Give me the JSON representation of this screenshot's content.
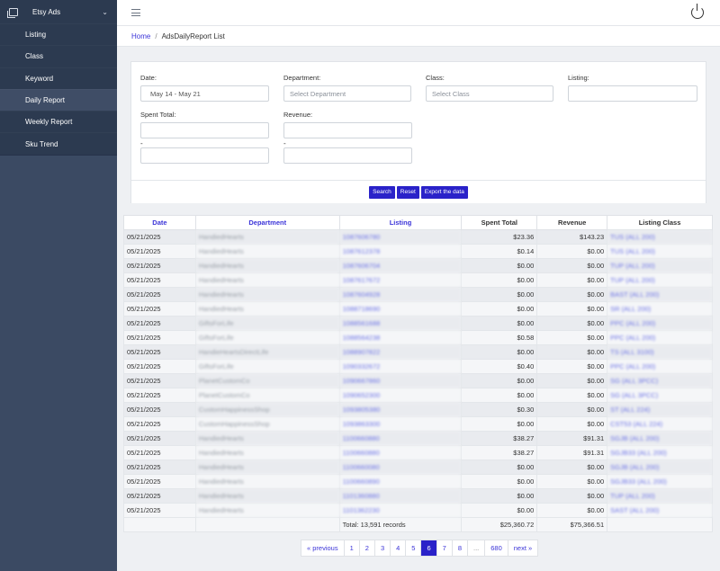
{
  "sidebar": {
    "title": "Etsy Ads",
    "items": [
      {
        "label": "Listing"
      },
      {
        "label": "Class"
      },
      {
        "label": "Keyword"
      },
      {
        "label": "Daily Report"
      },
      {
        "label": "Weekly Report"
      },
      {
        "label": "Sku Trend"
      }
    ]
  },
  "breadcrumb": {
    "home": "Home",
    "separator": "/",
    "current": "AdsDailyReport List"
  },
  "filters": {
    "date_label": "Date:",
    "date_value": "May 14 - May 21",
    "department_label": "Department:",
    "department_placeholder": "Select Department",
    "class_label": "Class:",
    "class_placeholder": "Select Class",
    "listing_label": "Listing:",
    "spent_label": "Spent Total:",
    "revenue_label": "Revenue:",
    "range_dash": "-",
    "search_btn": "Search",
    "reset_btn": "Reset",
    "export_btn": "Export the data"
  },
  "table": {
    "headers": [
      "Date",
      "Department",
      "Listing",
      "Spent Total",
      "Revenue",
      "Listing Class"
    ],
    "rows": [
      [
        "05/21/2025",
        "HandiedHearts",
        "1087606780",
        "$23.36",
        "$143.23",
        "TUS (ALL 200)"
      ],
      [
        "05/21/2025",
        "HandiedHearts",
        "1087612378",
        "$0.14",
        "$0.00",
        "TUS (ALL 200)"
      ],
      [
        "05/21/2025",
        "HandiedHearts",
        "1087606704",
        "$0.00",
        "$0.00",
        "TUP (ALL 200)"
      ],
      [
        "05/21/2025",
        "HandiedHearts",
        "1087617672",
        "$0.00",
        "$0.00",
        "TUP (ALL 200)"
      ],
      [
        "05/21/2025",
        "HandiedHearts",
        "1087604928",
        "$0.00",
        "$0.00",
        "BAST (ALL 200)"
      ],
      [
        "05/21/2025",
        "HandiedHearts",
        "1088718690",
        "$0.00",
        "$0.00",
        "SR (ALL 200)"
      ],
      [
        "05/21/2025",
        "GiftsForLife",
        "1088561688",
        "$0.00",
        "$0.00",
        "PPC (ALL 200)"
      ],
      [
        "05/21/2025",
        "GiftsForLife",
        "1088564238",
        "$0.58",
        "$0.00",
        "PPC (ALL 200)"
      ],
      [
        "05/21/2025",
        "HandieHeartsDirectLife",
        "1088907822",
        "$0.00",
        "$0.00",
        "TS (ALL 3100)"
      ],
      [
        "05/21/2025",
        "GiftsForLife",
        "1090332672",
        "$0.40",
        "$0.00",
        "PPC (ALL 200)"
      ],
      [
        "05/21/2025",
        "PlanetCustomCo",
        "1090667860",
        "$0.00",
        "$0.00",
        "SG (ALL 3PCC)"
      ],
      [
        "05/21/2025",
        "PlanetCustomCo",
        "1090652300",
        "$0.00",
        "$0.00",
        "SG (ALL 3PCC)"
      ],
      [
        "05/21/2025",
        "CustomHappinessShop",
        "1093805380",
        "$0.30",
        "$0.00",
        "ST (ALL 224)"
      ],
      [
        "05/21/2025",
        "CustomHappinessShop",
        "1093863300",
        "$0.00",
        "$0.00",
        "CST53 (ALL 224)"
      ],
      [
        "05/21/2025",
        "HandiedHearts",
        "1100660880",
        "$38.27",
        "$91.31",
        "SGJB (ALL 200)"
      ],
      [
        "05/21/2025",
        "HandiedHearts",
        "1100660880",
        "$38.27",
        "$91.31",
        "SGJB33 (ALL 200)"
      ],
      [
        "05/21/2025",
        "HandiedHearts",
        "1100660080",
        "$0.00",
        "$0.00",
        "SGJB (ALL 200)"
      ],
      [
        "05/21/2025",
        "HandiedHearts",
        "1100660890",
        "$0.00",
        "$0.00",
        "SGJB33 (ALL 200)"
      ],
      [
        "05/21/2025",
        "HandiedHearts",
        "1101360880",
        "$0.00",
        "$0.00",
        "TUP (ALL 200)"
      ],
      [
        "05/21/2025",
        "HandiedHearts",
        "1101362230",
        "$0.00",
        "$0.00",
        "SAST (ALL 200)"
      ]
    ],
    "total_records": "Total: 13,591 records",
    "total_spent": "$25,360.72",
    "total_revenue": "$75,366.51"
  },
  "pagination": {
    "prev": "« previous",
    "pages": [
      "1",
      "2",
      "3",
      "4",
      "5",
      "6",
      "7",
      "8",
      "...",
      "680"
    ],
    "active": "6",
    "next": "next »"
  },
  "colors": {
    "sidebar_bg": "#3b4a63",
    "accent": "#2a22c9",
    "link": "#3b34d8"
  }
}
